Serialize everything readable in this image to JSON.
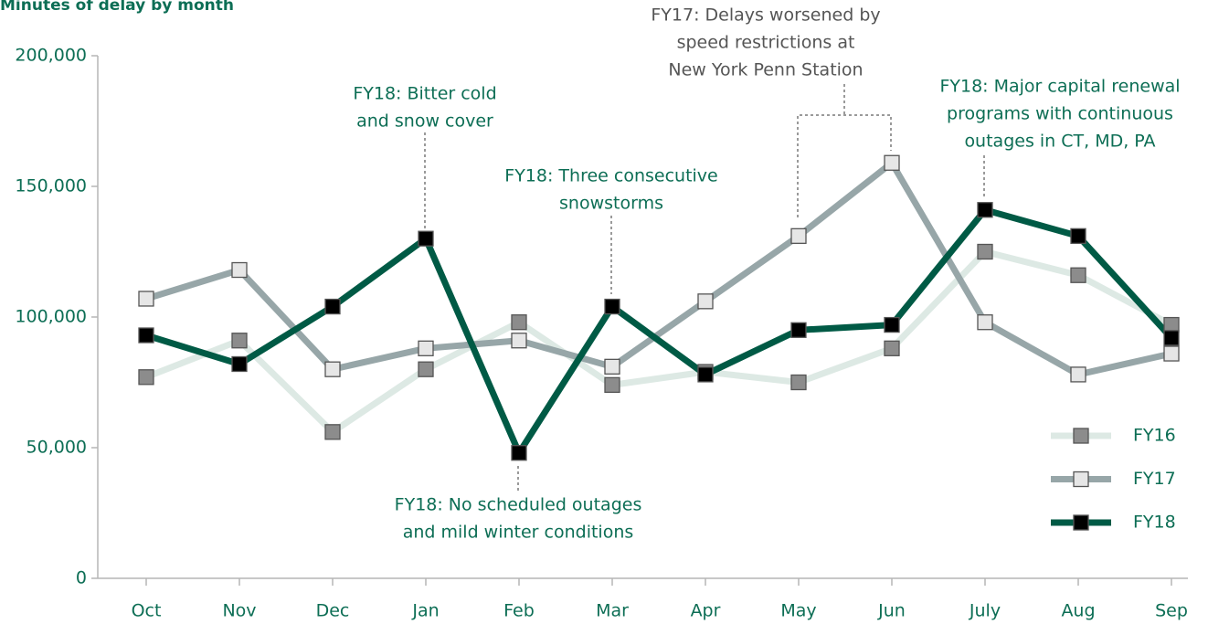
{
  "chart_data": {
    "type": "line",
    "title": "Minutes of delay by month",
    "categories": [
      "Oct",
      "Nov",
      "Dec",
      "Jan",
      "Feb",
      "Mar",
      "Apr",
      "May",
      "Jun",
      "July",
      "Aug",
      "Sep"
    ],
    "series": [
      {
        "name": "FY16",
        "color": "#dde9e4",
        "marker_color": "#8c8c8c",
        "values": [
          77000,
          91000,
          56000,
          80000,
          98000,
          74000,
          79000,
          75000,
          88000,
          125000,
          116000,
          97000
        ]
      },
      {
        "name": "FY17",
        "color": "#97a6a8",
        "marker_color": "#e6e6e6",
        "values": [
          107000,
          118000,
          80000,
          88000,
          91000,
          81000,
          106000,
          131000,
          159000,
          98000,
          78000,
          86000
        ]
      },
      {
        "name": "FY18",
        "color": "#005a45",
        "marker_color": "#000000",
        "values": [
          93000,
          82000,
          104000,
          130000,
          48000,
          104000,
          78000,
          95000,
          97000,
          141000,
          131000,
          92000
        ]
      }
    ],
    "ylim": [
      0,
      200000
    ],
    "yticks": [
      0,
      {
        "value": 50000,
        "label": "50,000"
      },
      {
        "value": 100000,
        "label": "100,000"
      },
      {
        "value": 150000,
        "label": "150,000"
      },
      {
        "value": 200000,
        "label": "200,000"
      }
    ],
    "annotations": [
      {
        "text": [
          "FY18: Bitter cold",
          "and snow cover"
        ]
      },
      {
        "text": [
          "FY18: Three consecutive",
          "snowstorms"
        ]
      },
      {
        "text": [
          "FY18: No scheduled outages",
          "and mild winter conditions"
        ]
      },
      {
        "text": [
          "FY17: Delays worsened by",
          "speed restrictions at",
          "New York Penn Station"
        ]
      },
      {
        "text": [
          "FY18: Major capital renewal",
          "programs with continuous",
          "outages in CT, MD, PA"
        ]
      }
    ],
    "legend": "lower right"
  }
}
